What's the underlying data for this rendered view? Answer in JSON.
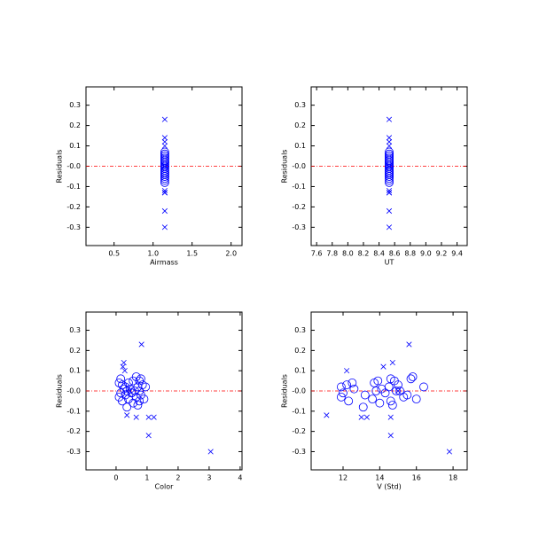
{
  "chart_data": [
    {
      "type": "scatter",
      "xlabel": "Airmass",
      "ylabel": "Residuals",
      "xlim": [
        0.14,
        2.14
      ],
      "ylim": [
        -0.39,
        0.39
      ],
      "xticks": [
        0.5,
        {
          "value": 1,
          "label": "1.0"
        },
        1.5,
        {
          "value": 2,
          "label": "2.0"
        }
      ],
      "yticks": [
        -0.3,
        -0.2,
        -0.1,
        {
          "value": 0,
          "label": "-0.0"
        },
        0.1,
        0.2,
        0.3
      ],
      "reference_line": {
        "value": 0,
        "color": "#ff0000"
      },
      "series": [
        {
          "marker": "x",
          "color": "#0000ff",
          "x": [
            1.15,
            1.15,
            1.15,
            1.15,
            1.15,
            1.15,
            1.15,
            1.15,
            1.15,
            1.15,
            1.15
          ],
          "values": [
            0.23,
            0.14,
            0.12,
            0.1,
            -0.12,
            -0.13,
            -0.13,
            -0.13,
            -0.22,
            -0.3,
            0.0
          ]
        },
        {
          "marker": "o",
          "color": "#0000ff",
          "x": [
            1.15,
            1.15,
            1.15,
            1.15,
            1.15,
            1.15,
            1.15,
            1.15,
            1.15,
            1.15,
            1.15,
            1.15,
            1.15,
            1.15,
            1.15,
            1.15,
            1.15,
            1.15,
            1.15,
            1.15,
            1.15,
            1.15,
            1.15,
            1.15,
            1.15,
            1.15,
            1.15,
            1.15,
            1.15,
            1.15
          ],
          "values": [
            0.07,
            0.06,
            0.06,
            0.05,
            0.05,
            0.04,
            0.04,
            0.03,
            0.03,
            0.02,
            0.02,
            0.02,
            0.01,
            0.01,
            0.0,
            0.0,
            0.0,
            -0.01,
            -0.01,
            -0.02,
            -0.02,
            -0.03,
            -0.03,
            -0.04,
            -0.04,
            -0.05,
            -0.05,
            -0.06,
            -0.07,
            -0.08
          ]
        }
      ]
    },
    {
      "type": "scatter",
      "xlabel": "UT",
      "ylabel": "Residuals",
      "xlim": [
        7.53,
        9.53
      ],
      "ylim": [
        -0.39,
        0.39
      ],
      "xticks": [
        7.6,
        7.8,
        {
          "value": 8,
          "label": "8.0"
        },
        8.2,
        8.4,
        8.6,
        8.8,
        {
          "value": 9,
          "label": "9.0"
        },
        9.2,
        9.4
      ],
      "yticks": [
        -0.3,
        -0.2,
        -0.1,
        {
          "value": 0,
          "label": "-0.0"
        },
        0.1,
        0.2,
        0.3
      ],
      "reference_line": {
        "value": 0,
        "color": "#ff0000"
      },
      "series": [
        {
          "marker": "x",
          "color": "#0000ff",
          "x": [
            8.53,
            8.53,
            8.53,
            8.53,
            8.53,
            8.53,
            8.53,
            8.53,
            8.53,
            8.53,
            8.53
          ],
          "values": [
            0.23,
            0.14,
            0.12,
            0.1,
            -0.12,
            -0.13,
            -0.13,
            -0.13,
            -0.22,
            -0.3,
            0.0
          ]
        },
        {
          "marker": "o",
          "color": "#0000ff",
          "x": [
            8.53,
            8.53,
            8.53,
            8.53,
            8.53,
            8.53,
            8.53,
            8.53,
            8.53,
            8.53,
            8.53,
            8.53,
            8.53,
            8.53,
            8.53,
            8.53,
            8.53,
            8.53,
            8.53,
            8.53,
            8.53,
            8.53,
            8.53,
            8.53,
            8.53,
            8.53,
            8.53,
            8.53,
            8.53,
            8.53
          ],
          "values": [
            0.07,
            0.06,
            0.06,
            0.05,
            0.05,
            0.04,
            0.04,
            0.03,
            0.03,
            0.02,
            0.02,
            0.02,
            0.01,
            0.01,
            0.0,
            0.0,
            0.0,
            -0.01,
            -0.01,
            -0.02,
            -0.02,
            -0.03,
            -0.03,
            -0.04,
            -0.04,
            -0.05,
            -0.05,
            -0.06,
            -0.07,
            -0.08
          ]
        }
      ]
    },
    {
      "type": "scatter",
      "xlabel": "Color",
      "ylabel": "Residuals",
      "xlim": [
        -0.97,
        4.06
      ],
      "ylim": [
        -0.39,
        0.39
      ],
      "xticks": [
        0,
        1,
        2,
        3,
        4
      ],
      "yticks": [
        -0.3,
        -0.2,
        -0.1,
        {
          "value": 0,
          "label": "-0.0"
        },
        0.1,
        0.2,
        0.3
      ],
      "reference_line": {
        "value": 0,
        "color": "#ff0000"
      },
      "series": [
        {
          "marker": "x",
          "color": "#0000ff",
          "x": [
            0.82,
            0.25,
            0.22,
            0.28,
            0.35,
            0.65,
            1.05,
            1.22,
            1.05,
            3.05,
            0.45
          ],
          "values": [
            0.23,
            0.14,
            0.12,
            0.1,
            -0.12,
            -0.13,
            -0.13,
            -0.13,
            -0.22,
            -0.3,
            0.0
          ]
        },
        {
          "marker": "o",
          "color": "#0000ff",
          "x": [
            0.65,
            0.8,
            0.15,
            0.55,
            0.75,
            0.1,
            0.4,
            0.85,
            0.2,
            0.3,
            0.7,
            0.95,
            0.45,
            0.25,
            0.35,
            0.6,
            0.75,
            0.15,
            0.5,
            0.3,
            0.8,
            0.1,
            0.65,
            0.4,
            0.9,
            0.2,
            0.75,
            0.55,
            0.7,
            0.35
          ],
          "values": [
            0.07,
            0.06,
            0.06,
            0.05,
            0.05,
            0.04,
            0.04,
            0.03,
            0.03,
            0.02,
            0.02,
            0.02,
            0.01,
            0.01,
            0.0,
            0.0,
            0.0,
            -0.01,
            -0.01,
            -0.02,
            -0.02,
            -0.03,
            -0.03,
            -0.04,
            -0.04,
            -0.05,
            -0.05,
            -0.06,
            -0.07,
            -0.08
          ]
        }
      ]
    },
    {
      "type": "scatter",
      "xlabel": "V (Std)",
      "ylabel": "Residuals",
      "xlim": [
        10.26,
        18.77
      ],
      "ylim": [
        -0.39,
        0.39
      ],
      "xticks": [
        12,
        14,
        16,
        18
      ],
      "yticks": [
        -0.3,
        -0.2,
        -0.1,
        {
          "value": 0,
          "label": "-0.0"
        },
        0.1,
        0.2,
        0.3
      ],
      "reference_line": {
        "value": 0,
        "color": "#ff0000"
      },
      "series": [
        {
          "marker": "x",
          "color": "#0000ff",
          "x": [
            15.6,
            14.7,
            14.2,
            12.2,
            11.1,
            13.3,
            13.0,
            14.6,
            14.6,
            17.8,
            15.0
          ],
          "values": [
            0.23,
            0.14,
            0.12,
            0.1,
            -0.12,
            -0.13,
            -0.13,
            -0.13,
            -0.22,
            -0.3,
            0.0
          ]
        },
        {
          "marker": "o",
          "color": "#0000ff",
          "x": [
            15.8,
            15.7,
            14.6,
            13.9,
            14.8,
            12.5,
            13.7,
            15.0,
            12.2,
            11.9,
            14.5,
            16.4,
            14.1,
            12.6,
            13.8,
            15.1,
            14.9,
            12.0,
            14.3,
            13.2,
            15.5,
            11.9,
            15.3,
            13.6,
            16.0,
            12.3,
            14.6,
            14.0,
            14.7,
            13.1
          ],
          "values": [
            0.07,
            0.06,
            0.06,
            0.05,
            0.05,
            0.04,
            0.04,
            0.03,
            0.03,
            0.02,
            0.02,
            0.02,
            0.01,
            0.01,
            0.0,
            0.0,
            0.0,
            -0.01,
            -0.01,
            -0.02,
            -0.02,
            -0.03,
            -0.03,
            -0.04,
            -0.04,
            -0.05,
            -0.05,
            -0.06,
            -0.07,
            -0.08
          ]
        }
      ]
    }
  ]
}
